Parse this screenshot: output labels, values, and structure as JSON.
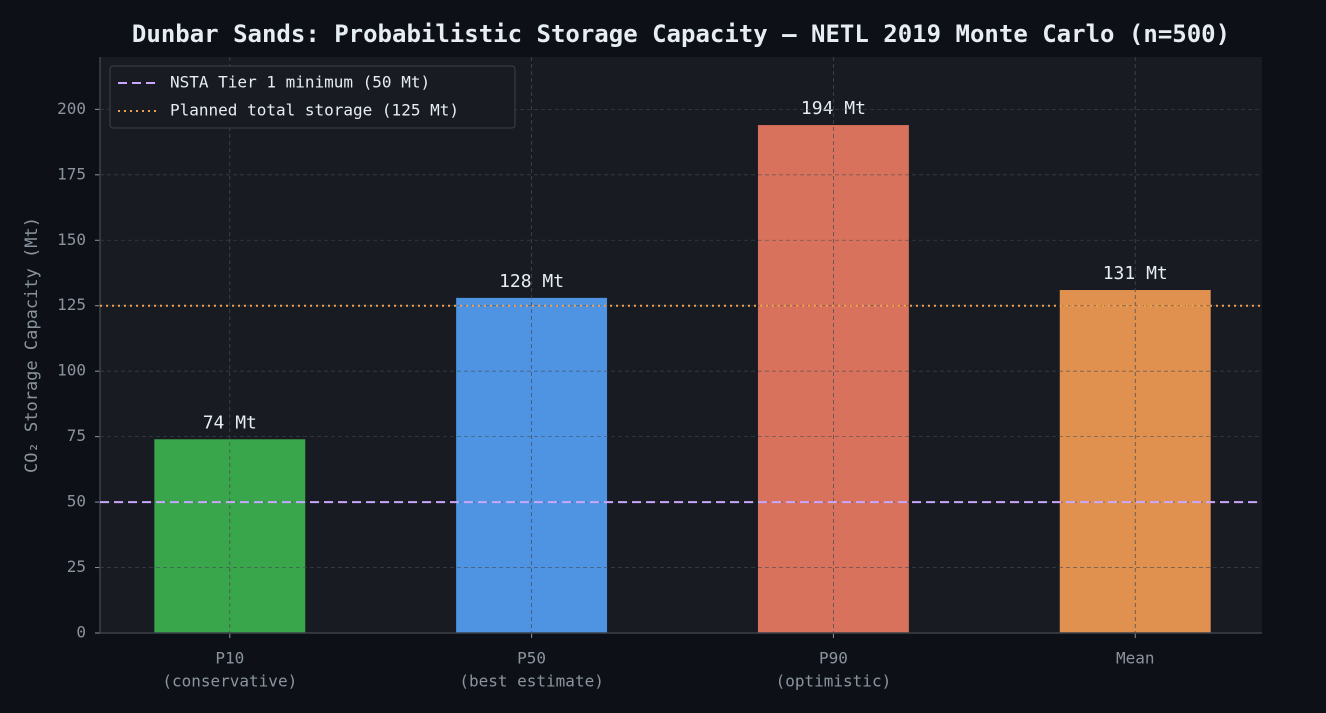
{
  "chart_data": {
    "type": "bar",
    "title": "Dunbar Sands: Probabilistic Storage Capacity — NETL 2019 Monte Carlo (n=500)",
    "ylabel": "CO₂ Storage Capacity (Mt)",
    "categories": [
      [
        "P10",
        "(conservative)"
      ],
      [
        "P50",
        "(best estimate)"
      ],
      [
        "P90",
        "(optimistic)"
      ],
      [
        "Mean"
      ]
    ],
    "values": [
      74,
      128,
      194,
      131
    ],
    "value_labels": [
      "74 Mt",
      "128 Mt",
      "194 Mt",
      "131 Mt"
    ],
    "colors": [
      "#3aa64c",
      "#4f94e2",
      "#d9725c",
      "#e0914f"
    ],
    "ylim": [
      0,
      220
    ],
    "yticks": [
      0,
      25,
      50,
      75,
      100,
      125,
      150,
      175,
      200
    ],
    "grid": true,
    "legend": "upper left",
    "reference_lines": [
      {
        "name": "NSTA Tier 1 minimum (50 Mt)",
        "value": 50,
        "color": "#c9a7ff",
        "style": "dashed"
      },
      {
        "name": "Planned total storage (125 Mt)",
        "value": 125,
        "color": "#f0a04b",
        "style": "dotted"
      }
    ]
  }
}
